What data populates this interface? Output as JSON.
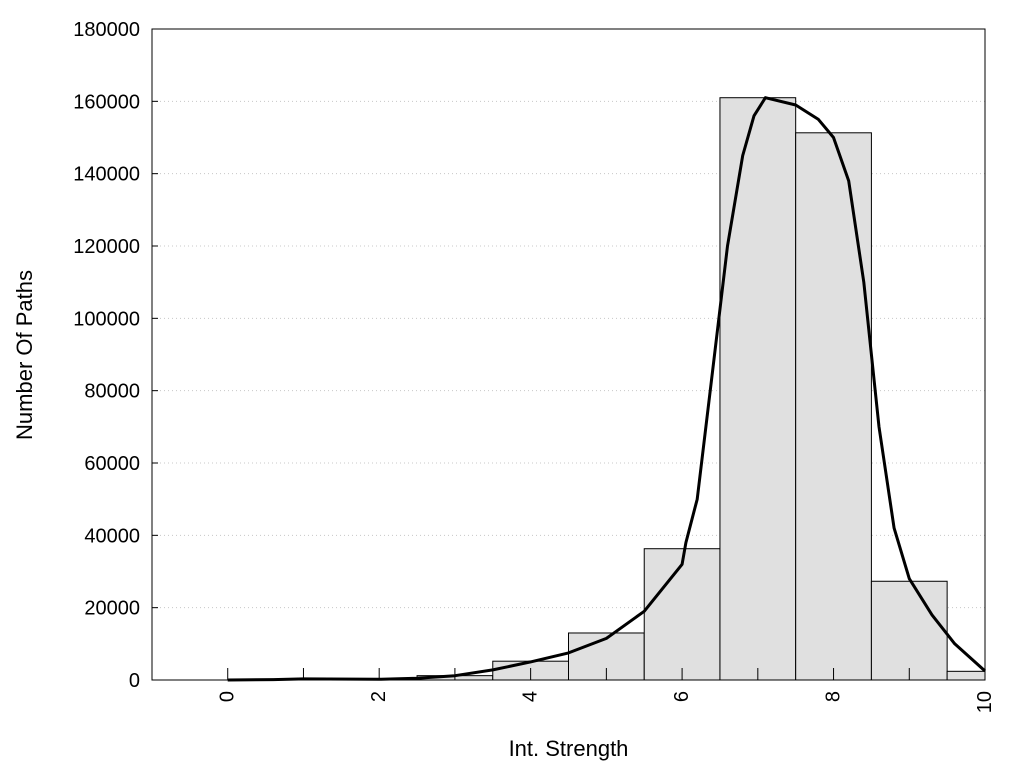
{
  "chart_data": {
    "type": "bar",
    "title": "",
    "xlabel": "Int. Strength",
    "ylabel": "Number Of Paths",
    "xlim": [
      -1,
      10
    ],
    "ylim": [
      0,
      180000
    ],
    "x_ticks": [
      0,
      2,
      4,
      6,
      8,
      10
    ],
    "y_ticks": [
      0,
      20000,
      40000,
      60000,
      80000,
      100000,
      120000,
      140000,
      160000,
      180000
    ],
    "grid": "horizontal dotted",
    "bin_width": 1,
    "bins": [
      {
        "x": 0,
        "value": 0
      },
      {
        "x": 1,
        "value": 0
      },
      {
        "x": 2,
        "value": 0
      },
      {
        "x": 3,
        "value": 1200
      },
      {
        "x": 4,
        "value": 5200
      },
      {
        "x": 5,
        "value": 13000
      },
      {
        "x": 6,
        "value": 36300
      },
      {
        "x": 7,
        "value": 161000
      },
      {
        "x": 8,
        "value": 151300
      },
      {
        "x": 9,
        "value": 27300
      },
      {
        "x": 10,
        "value": 2400
      }
    ],
    "curve": [
      {
        "x": 0,
        "y": 0
      },
      {
        "x": 0.6,
        "y": 100
      },
      {
        "x": 1,
        "y": 300
      },
      {
        "x": 2,
        "y": 200
      },
      {
        "x": 2.5,
        "y": 500
      },
      {
        "x": 3,
        "y": 1200
      },
      {
        "x": 3.5,
        "y": 2800
      },
      {
        "x": 4,
        "y": 5000
      },
      {
        "x": 4.5,
        "y": 7500
      },
      {
        "x": 5,
        "y": 11500
      },
      {
        "x": 5.5,
        "y": 19000
      },
      {
        "x": 6,
        "y": 32000
      },
      {
        "x": 6.05,
        "y": 38000
      },
      {
        "x": 6.2,
        "y": 50000
      },
      {
        "x": 6.4,
        "y": 85000
      },
      {
        "x": 6.6,
        "y": 120000
      },
      {
        "x": 6.8,
        "y": 145000
      },
      {
        "x": 6.95,
        "y": 156000
      },
      {
        "x": 7.1,
        "y": 161000
      },
      {
        "x": 7.5,
        "y": 159000
      },
      {
        "x": 7.8,
        "y": 155000
      },
      {
        "x": 8.0,
        "y": 150000
      },
      {
        "x": 8.2,
        "y": 138000
      },
      {
        "x": 8.4,
        "y": 110000
      },
      {
        "x": 8.6,
        "y": 70000
      },
      {
        "x": 8.8,
        "y": 42000
      },
      {
        "x": 9.0,
        "y": 28000
      },
      {
        "x": 9.3,
        "y": 18000
      },
      {
        "x": 9.6,
        "y": 10000
      },
      {
        "x": 10,
        "y": 2500
      }
    ]
  }
}
